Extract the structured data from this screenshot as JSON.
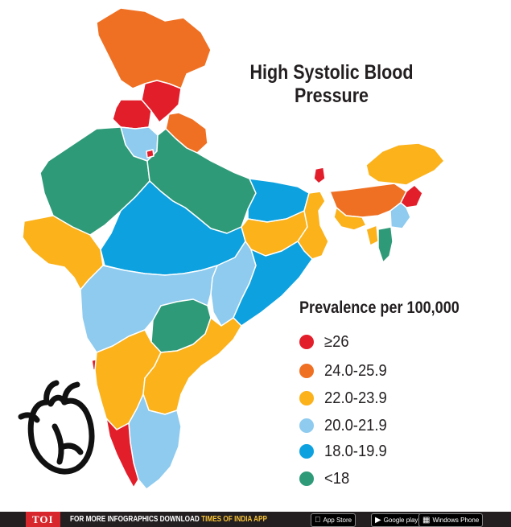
{
  "title_line1": "High Systolic Blood",
  "title_line2": "Pressure",
  "legend": {
    "title": "Prevalence per 100,000",
    "items": [
      {
        "label": "≥26",
        "color": "#e31e2b"
      },
      {
        "label": "24.0-25.9",
        "color": "#ef7023"
      },
      {
        "label": "22.0-23.9",
        "color": "#fbb21b"
      },
      {
        "label": "20.0-21.9",
        "color": "#8ecbef"
      },
      {
        "label": "18.0-19.9",
        "color": "#0da2df"
      },
      {
        "label": "<18",
        "color": "#2e9a78"
      }
    ]
  },
  "footer": {
    "brand": "TOI",
    "text": "FOR MORE  INFOGRAPHICS DOWNLOAD",
    "app": "TIMES OF INDIA APP",
    "stores": [
      {
        "icon": "apple-icon",
        "label": "App Store"
      },
      {
        "icon": "google-play-icon",
        "label": "Google play"
      },
      {
        "icon": "windows-icon",
        "label": "Windows Phone"
      }
    ]
  }
}
